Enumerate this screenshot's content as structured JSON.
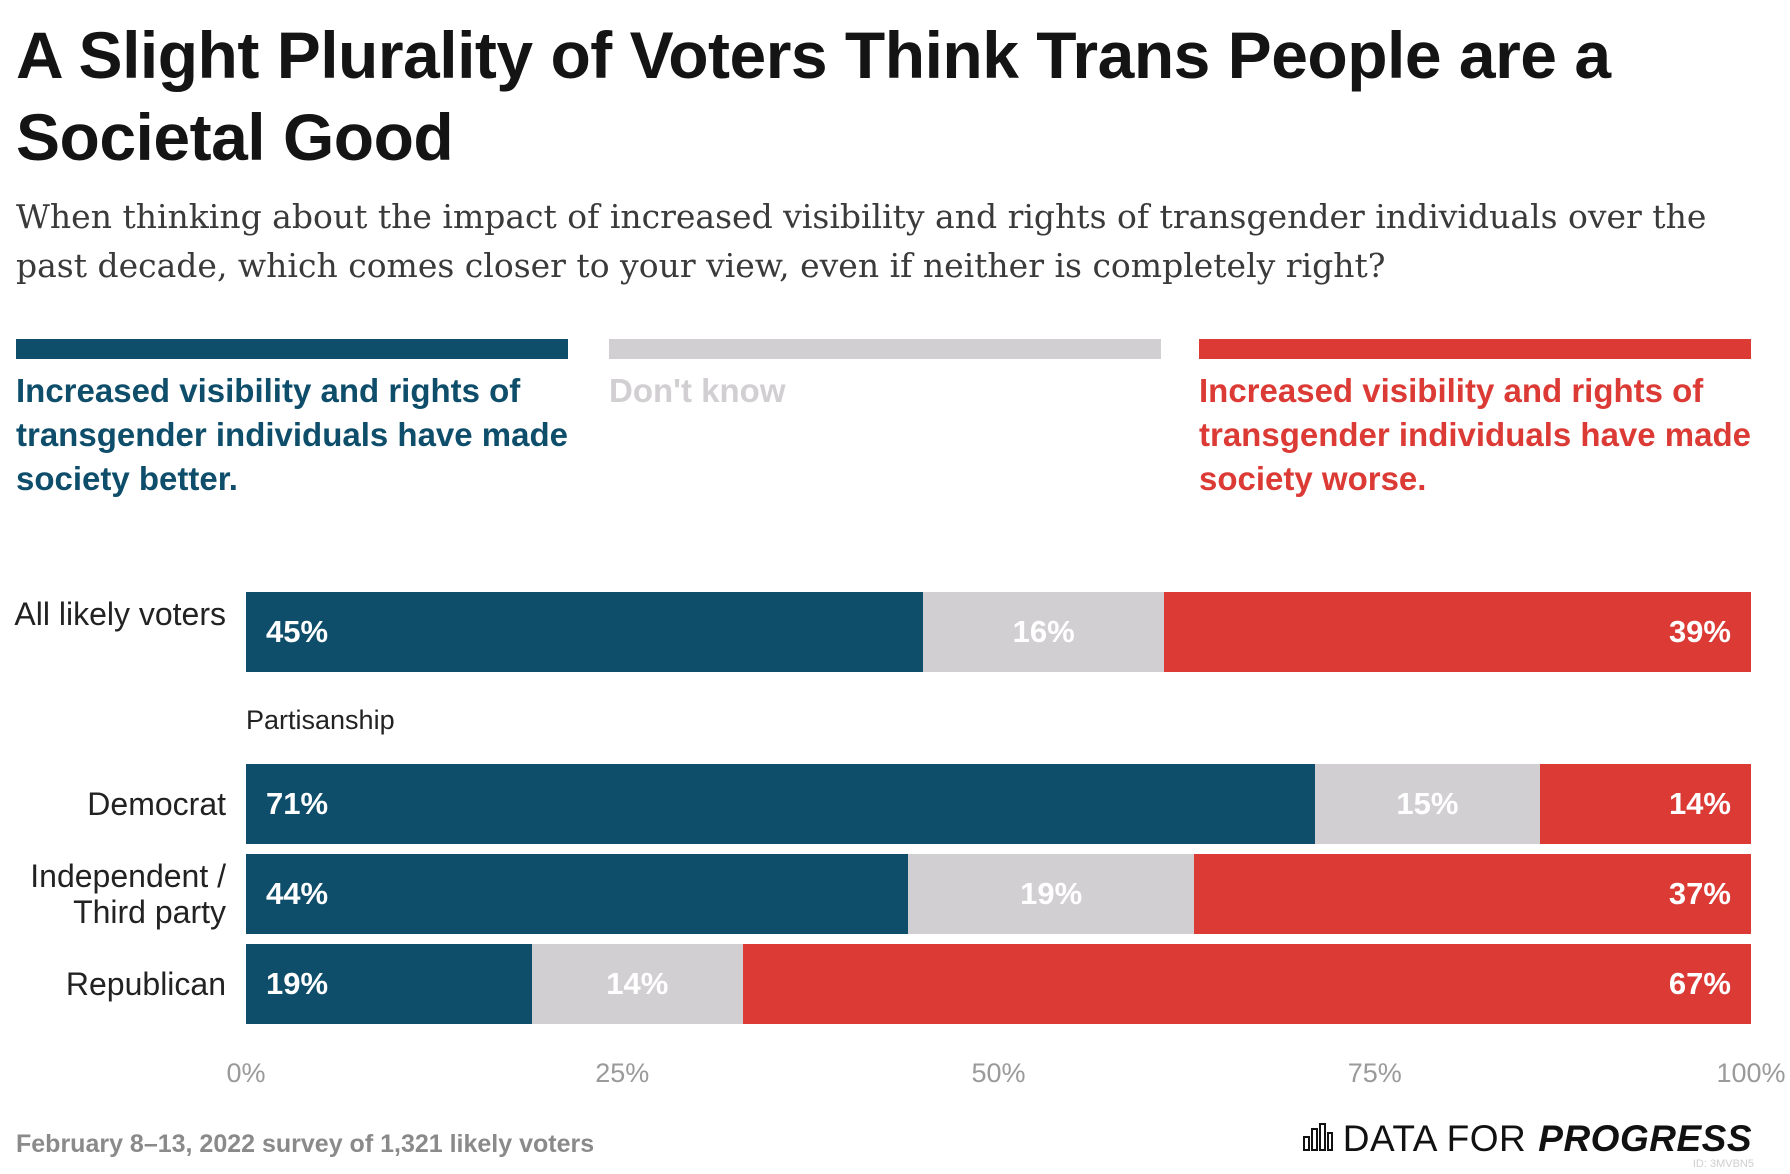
{
  "title": "A Slight Plurality of Voters Think Trans People are a Societal Good",
  "subtitle": "When thinking about the impact of increased visibility and rights of transgender individuals over the past decade, which comes closer to your view, even if neither is completely right?",
  "colors": {
    "better": "#0e4e6b",
    "dontknow": "#d2cfd2",
    "worse": "#db3a35"
  },
  "legend": [
    {
      "label": "Increased visibility and rights of transgender individuals have made society better."
    },
    {
      "label": "Don't know"
    },
    {
      "label": "Increased visibility and rights of transgender individuals have made society worse."
    }
  ],
  "group_label": "Partisanship",
  "rows": [
    {
      "label": "All likely voters",
      "better": "45%",
      "dontknow": "16%",
      "worse": "39%"
    },
    {
      "label": "Democrat",
      "better": "71%",
      "dontknow": "15%",
      "worse": "14%"
    },
    {
      "label": "Independent / Third party",
      "better": "44%",
      "dontknow": "19%",
      "worse": "37%"
    },
    {
      "label": "Republican",
      "better": "19%",
      "dontknow": "14%",
      "worse": "67%"
    }
  ],
  "axis_ticks": [
    "0%",
    "25%",
    "50%",
    "75%",
    "100%"
  ],
  "footer_note": "February 8–13, 2022 survey of 1,321 likely voters",
  "brand": {
    "part1": "DATA FOR",
    "part2": "PROGRESS",
    "icon": "bar-chart-icon"
  },
  "chart_id": "ID: 3MVBN5",
  "chart_data": {
    "type": "bar",
    "orientation": "horizontal",
    "stacked": true,
    "title": "A Slight Plurality of Voters Think Trans People are a Societal Good",
    "subtitle": "When thinking about the impact of increased visibility and rights of transgender individuals over the past decade, which comes closer to your view, even if neither is completely right?",
    "categories": [
      "All likely voters",
      "Democrat",
      "Independent / Third party",
      "Republican"
    ],
    "series": [
      {
        "name": "Increased visibility and rights of transgender individuals have made society better.",
        "values": [
          45,
          71,
          44,
          19
        ]
      },
      {
        "name": "Don't know",
        "values": [
          16,
          15,
          19,
          14
        ]
      },
      {
        "name": "Increased visibility and rights of transgender individuals have made society worse.",
        "values": [
          39,
          14,
          37,
          67
        ]
      }
    ],
    "xlim": [
      0,
      100
    ],
    "xticks": [
      "0%",
      "25%",
      "50%",
      "75%",
      "100%"
    ],
    "legend_position": "top",
    "grid": false
  }
}
